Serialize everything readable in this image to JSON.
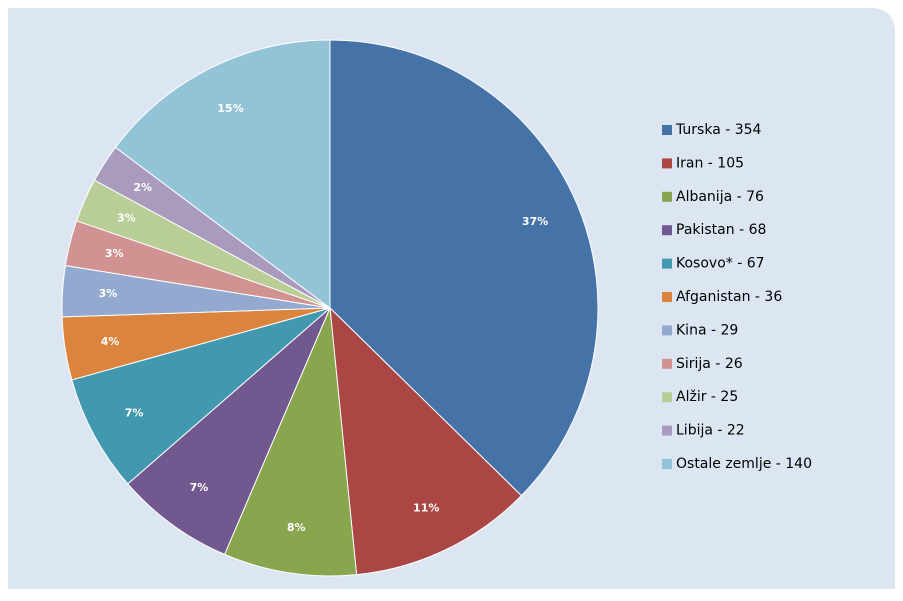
{
  "chart_data": {
    "type": "pie",
    "categories": [
      "Turska - 354",
      "Iran - 105",
      "Albanija - 76",
      "Pakistan - 68",
      "Kosovo* - 67",
      "Afganistan - 36",
      "Kina - 29",
      "Sirija - 26",
      "Alžir - 25",
      "Libija - 22",
      "Ostale zemlje - 140"
    ],
    "values": [
      354,
      105,
      76,
      68,
      67,
      36,
      29,
      26,
      25,
      22,
      140
    ],
    "value_labels": [
      "37%",
      "11%",
      "8%",
      "7%",
      "7%",
      "4%",
      "3%",
      "3%",
      "3%",
      "2%",
      "15%"
    ],
    "colors": [
      "#4572a7",
      "#aa4643",
      "#89a54e",
      "#71588f",
      "#4198af",
      "#db843d",
      "#93a9cf",
      "#d19392",
      "#b9cd96",
      "#a99bbd",
      "#93c4d6"
    ],
    "legend": "right"
  }
}
